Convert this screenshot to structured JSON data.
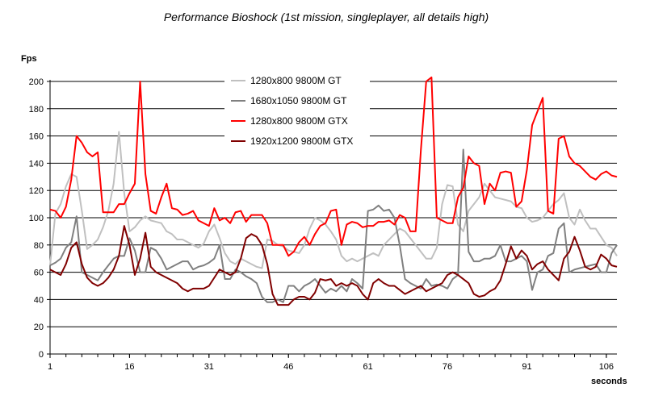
{
  "chart_data": {
    "type": "line",
    "title": "Performance Bioshock (1st mission, singleplayer, all details high)",
    "xlabel": "seconds",
    "ylabel": "Fps",
    "ylim": [
      0,
      200
    ],
    "xlim": [
      1,
      108
    ],
    "yticks": [
      0,
      20,
      40,
      60,
      80,
      100,
      120,
      140,
      160,
      180,
      200
    ],
    "xticks": [
      1,
      16,
      31,
      46,
      61,
      76,
      91,
      106
    ],
    "grid": true,
    "legend_position": "top-center",
    "series": [
      {
        "name": "1280x800 9800M GT",
        "color": "#c0c0c0",
        "values": [
          65,
          103,
          110,
          123,
          132,
          130,
          105,
          77,
          80,
          84,
          93,
          105,
          125,
          163,
          118,
          90,
          93,
          98,
          101,
          98,
          97,
          96,
          90,
          88,
          84,
          84,
          82,
          80,
          78,
          81,
          90,
          95,
          85,
          74,
          68,
          66,
          70,
          68,
          66,
          64,
          63,
          84,
          83,
          80,
          79,
          76,
          75,
          74,
          80,
          92,
          100,
          98,
          95,
          90,
          84,
          72,
          68,
          70,
          68,
          70,
          72,
          74,
          72,
          80,
          84,
          88,
          92,
          90,
          85,
          80,
          75,
          70,
          70,
          78,
          110,
          124,
          123,
          95,
          90,
          105,
          110,
          115,
          125,
          120,
          115,
          114,
          113,
          112,
          108,
          107,
          100,
          97,
          98,
          100,
          105,
          110,
          113,
          118,
          100,
          95,
          106,
          98,
          92,
          92,
          86,
          80,
          78,
          72
        ]
      },
      {
        "name": "1680x1050 9800M GT",
        "color": "#808080",
        "values": [
          65,
          67,
          70,
          78,
          82,
          101,
          60,
          58,
          56,
          54,
          60,
          65,
          70,
          72,
          72,
          85,
          76,
          60,
          60,
          78,
          76,
          70,
          62,
          64,
          66,
          68,
          68,
          62,
          64,
          65,
          67,
          70,
          80,
          55,
          55,
          62,
          60,
          57,
          55,
          52,
          42,
          38,
          38,
          40,
          38,
          50,
          50,
          46,
          50,
          52,
          55,
          50,
          45,
          48,
          46,
          50,
          46,
          55,
          52,
          48,
          105,
          106,
          109,
          105,
          106,
          100,
          80,
          55,
          52,
          50,
          48,
          55,
          50,
          51,
          50,
          48,
          55,
          58,
          150,
          75,
          68,
          68,
          70,
          70,
          72,
          80,
          68,
          68,
          70,
          72,
          68,
          47,
          60,
          62,
          72,
          74,
          92,
          96,
          60,
          62,
          63,
          64,
          65,
          66,
          60,
          60,
          74,
          80
        ]
      },
      {
        "name": "1280x800 9800M GTX",
        "color": "#ff0000",
        "values": [
          106,
          105,
          100,
          108,
          128,
          160,
          155,
          148,
          145,
          148,
          104,
          104,
          104,
          110,
          110,
          118,
          125,
          200,
          132,
          105,
          103,
          115,
          125,
          107,
          106,
          102,
          103,
          105,
          98,
          96,
          94,
          107,
          98,
          100,
          96,
          104,
          105,
          97,
          102,
          102,
          102,
          96,
          80,
          80,
          80,
          72,
          75,
          82,
          86,
          80,
          88,
          94,
          96,
          105,
          106,
          80,
          95,
          97,
          96,
          93,
          94,
          94,
          97,
          97,
          98,
          95,
          102,
          100,
          90,
          90,
          150,
          200,
          205,
          100,
          98,
          96,
          96,
          115,
          122,
          145,
          140,
          138,
          110,
          125,
          120,
          133,
          134,
          133,
          108,
          112,
          135,
          168,
          178,
          188,
          105,
          103,
          158,
          160,
          145,
          140,
          138,
          134,
          130,
          128,
          132,
          134,
          131,
          130
        ]
      },
      {
        "name": "1920x1200 9800M GTX",
        "color": "#800000",
        "values": [
          62,
          60,
          58,
          66,
          78,
          82,
          66,
          56,
          52,
          50,
          52,
          56,
          62,
          72,
          94,
          80,
          58,
          70,
          89,
          64,
          60,
          58,
          56,
          54,
          52,
          48,
          46,
          48,
          48,
          48,
          50,
          56,
          62,
          60,
          58,
          60,
          70,
          85,
          88,
          86,
          80,
          66,
          44,
          36,
          36,
          36,
          40,
          42,
          42,
          40,
          45,
          55,
          54,
          55,
          50,
          52,
          50,
          52,
          50,
          44,
          40,
          52,
          55,
          52,
          50,
          50,
          47,
          44,
          46,
          48,
          50,
          46,
          48,
          50,
          52,
          58,
          60,
          58,
          55,
          52,
          44,
          42,
          43,
          46,
          48,
          54,
          66,
          79,
          70,
          76,
          72,
          62,
          66,
          68,
          62,
          58,
          54,
          70,
          75,
          86,
          76,
          64,
          62,
          64,
          73,
          70,
          65,
          64
        ]
      }
    ]
  }
}
